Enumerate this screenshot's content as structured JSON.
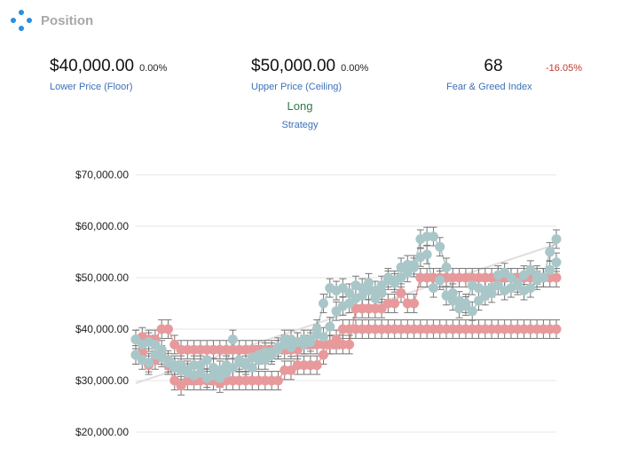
{
  "header": {
    "title": "Position",
    "icon": "move-arrows-icon",
    "icon_color": "#2a8fe0"
  },
  "stats": {
    "floor": {
      "value": "$40,000.00",
      "change": "0.00%",
      "label": "Lower Price (Floor)"
    },
    "ceiling": {
      "value": "$50,000.00",
      "change": "0.00%",
      "label": "Upper Price (Ceiling)"
    },
    "fear_greed": {
      "value": "68",
      "change": "-16.05%",
      "label": "Fear & Greed Index"
    }
  },
  "strategy": {
    "value": "Long",
    "label": "Strategy"
  },
  "chart_data": {
    "type": "scatter",
    "title": "",
    "xlabel": "",
    "ylabel": "",
    "ylim": [
      20000,
      70000
    ],
    "yticks": [
      "$20,000.00",
      "$30,000.00",
      "$40,000.00",
      "$50,000.00",
      "$60,000.00",
      "$70,000.00"
    ],
    "grid": true,
    "legend": "none",
    "error_bar": 1800,
    "colors": {
      "floor": "#e8999b",
      "ceiling": "#e8999b",
      "price": "#a9c7c9",
      "trend": "#e3dcdc",
      "grid": "#e5e5e5",
      "error": "#777777"
    },
    "series": [
      {
        "role": "floor",
        "values": [
          35000,
          35500,
          33000,
          34000,
          35000,
          33000,
          30000,
          29000,
          30000,
          30000,
          30000,
          30000,
          30000,
          29500,
          30000,
          30000,
          30000,
          30000,
          30000,
          30000,
          30000,
          30000,
          30000,
          32000,
          32000,
          33000,
          33000,
          33000,
          33000,
          35000,
          37000,
          38000,
          40000,
          40000,
          40000,
          40000,
          40000,
          40000,
          40000,
          40000,
          40000,
          40000,
          40000,
          40000,
          40000,
          40000,
          40000,
          40000,
          40000,
          40000,
          40000,
          40000,
          40000,
          40000,
          40000,
          40000,
          40000,
          40000,
          40000,
          40000,
          40000,
          40000,
          40000,
          40000,
          40000,
          40000
        ]
      },
      {
        "role": "ceiling",
        "values": [
          38000,
          38500,
          38000,
          38000,
          40000,
          40000,
          37000,
          36000,
          36000,
          36000,
          36000,
          36000,
          36000,
          36000,
          36000,
          36000,
          36000,
          36000,
          36000,
          36000,
          36000,
          36000,
          36000,
          36000,
          36000,
          36000,
          37000,
          37000,
          37000,
          37000,
          37000,
          37000,
          37000,
          37000,
          44000,
          44000,
          44000,
          44000,
          44000,
          45000,
          45000,
          47000,
          45000,
          45000,
          50000,
          50000,
          50000,
          50000,
          50000,
          50000,
          50000,
          50000,
          50000,
          50000,
          50000,
          50000,
          50000,
          50000,
          50000,
          50000,
          50000,
          50000,
          50000,
          50000,
          50000,
          50000
        ]
      },
      {
        "role": "price",
        "values": [
          38000,
          37000,
          37500,
          37000,
          36000,
          34000,
          33000,
          32000,
          31500,
          33000,
          33000,
          34000,
          32500,
          32000,
          33000,
          38000,
          34000,
          33500,
          34500,
          35000,
          34000,
          35500,
          36500,
          38000,
          38000,
          37500,
          37000,
          37500,
          40000,
          45000,
          48000,
          47500,
          48000,
          47000,
          48500,
          48000,
          49000,
          47500,
          47000,
          50000,
          49500,
          52000,
          52500,
          52000,
          57500,
          58000,
          58000,
          56000,
          52000,
          47000,
          45500,
          45000,
          48500,
          48000,
          47500,
          48000,
          50500,
          51000,
          50000,
          49000,
          50500,
          51500,
          50500,
          50000,
          55000,
          57500
        ]
      },
      {
        "role": "price",
        "values": [
          35000,
          34000,
          33500,
          35000,
          34500,
          33500,
          32500,
          33000,
          32000,
          31000,
          31500,
          30500,
          31000,
          30500,
          31500,
          32500,
          33500,
          33000,
          32500,
          34000,
          35500,
          35000,
          36000,
          37000,
          36500,
          37500,
          38000,
          38000,
          39000,
          38500,
          40500,
          43500,
          44500,
          45000,
          46000,
          46500,
          47500,
          46000,
          48500,
          49500,
          49000,
          50000,
          51000,
          52500,
          54000,
          54500,
          48000,
          49500,
          46500,
          45500,
          44000,
          44500,
          43500,
          45500,
          46500,
          47000,
          48500,
          47500,
          48000,
          48500,
          47500,
          48000,
          49500,
          50000,
          51500,
          53000
        ]
      }
    ],
    "trend": {
      "from": 29500,
      "to": 56500
    }
  }
}
